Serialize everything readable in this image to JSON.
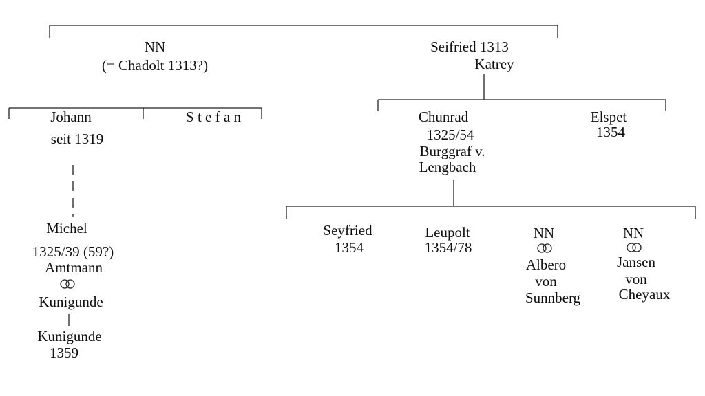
{
  "nodes": [
    {
      "lines": [
        "NN",
        "(= Chadolt 1313?)"
      ]
    },
    {
      "lines": [
        "Seifried 1313",
        "Katrey"
      ]
    },
    {
      "lines": [
        "Johann",
        "seit 1319"
      ]
    },
    {
      "lines": [
        "S t e f a n"
      ]
    },
    {
      "lines": [
        "Michel",
        "1325/39 (59?)",
        "Amtmann",
        "Kunigunde"
      ]
    },
    {
      "lines": [
        "Kunigunde",
        "1359"
      ]
    },
    {
      "lines": [
        "Chunrad",
        "1325/54",
        "Burggraf v.",
        "Lengbach"
      ]
    },
    {
      "lines": [
        "Elspet",
        "1354"
      ]
    },
    {
      "lines": [
        "Seyfried",
        "1354"
      ]
    },
    {
      "lines": [
        "Leupolt",
        "1354/78"
      ]
    },
    {
      "lines": [
        "NN",
        "Albero",
        "von",
        "Sunnberg"
      ]
    },
    {
      "lines": [
        "NN",
        "Jansen",
        "von",
        "Cheyaux"
      ]
    }
  ]
}
